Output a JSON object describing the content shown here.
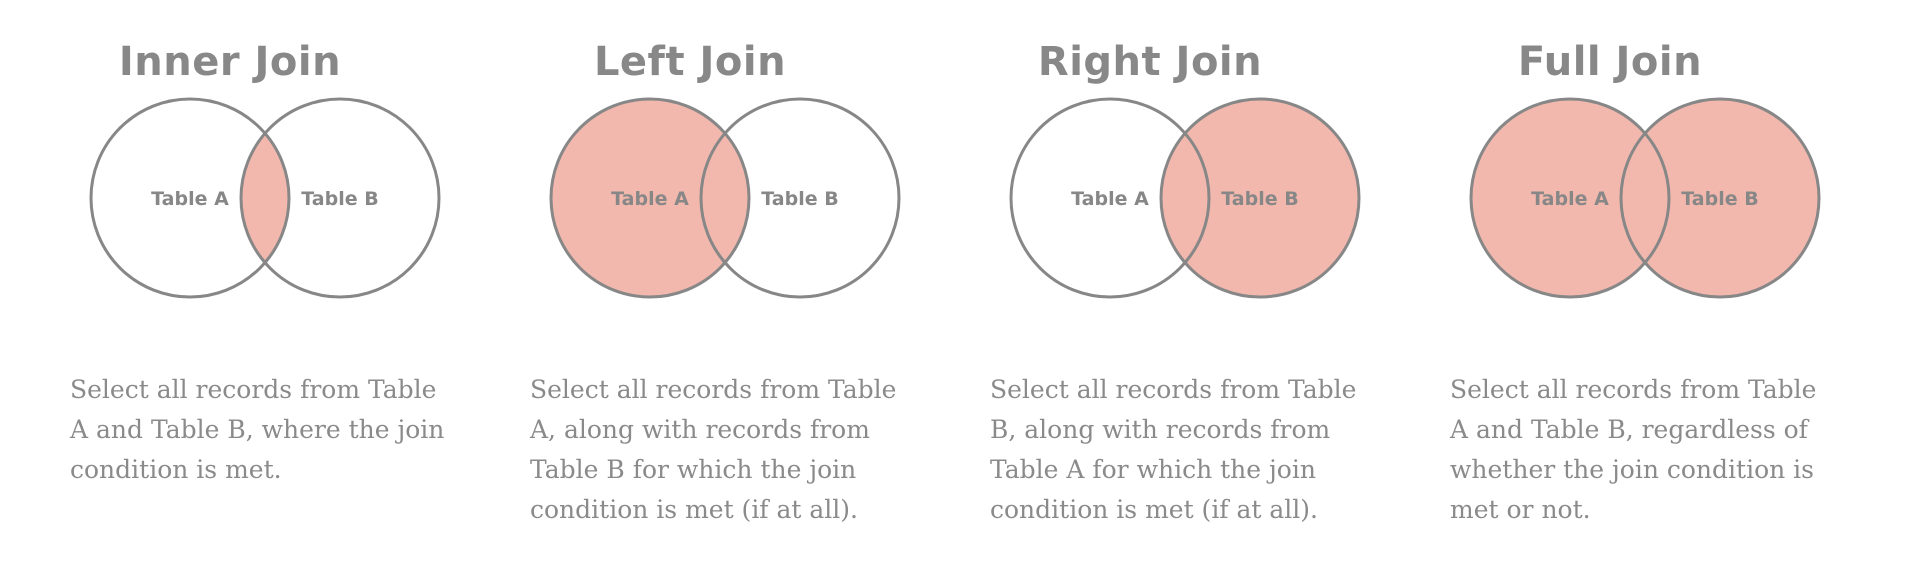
{
  "panels": [
    {
      "title": "Inner Join",
      "table_a": "Table A",
      "table_b": "Table B",
      "highlight": "intersection",
      "description": "Select all records from Table A and Table B, where the join condition is met."
    },
    {
      "title": "Left Join",
      "table_a": "Table A",
      "table_b": "Table B",
      "highlight": "left",
      "description": "Select all records from Table A, along with records from Table B for which the join condition is met (if at all)."
    },
    {
      "title": "Right Join",
      "table_a": "Table A",
      "table_b": "Table B",
      "highlight": "right",
      "description": "Select all records from Table B, along with records from Table A for which the join condition is met (if at all)."
    },
    {
      "title": "Full Join",
      "table_a": "Table A",
      "table_b": "Table B",
      "highlight": "full",
      "description": "Select all records from Table A and Table B, regardless of whether the join condition is met or not."
    }
  ],
  "colors": {
    "highlight_fill": "#f2b8ad",
    "circle_stroke": "#878787",
    "text": "#888888"
  }
}
